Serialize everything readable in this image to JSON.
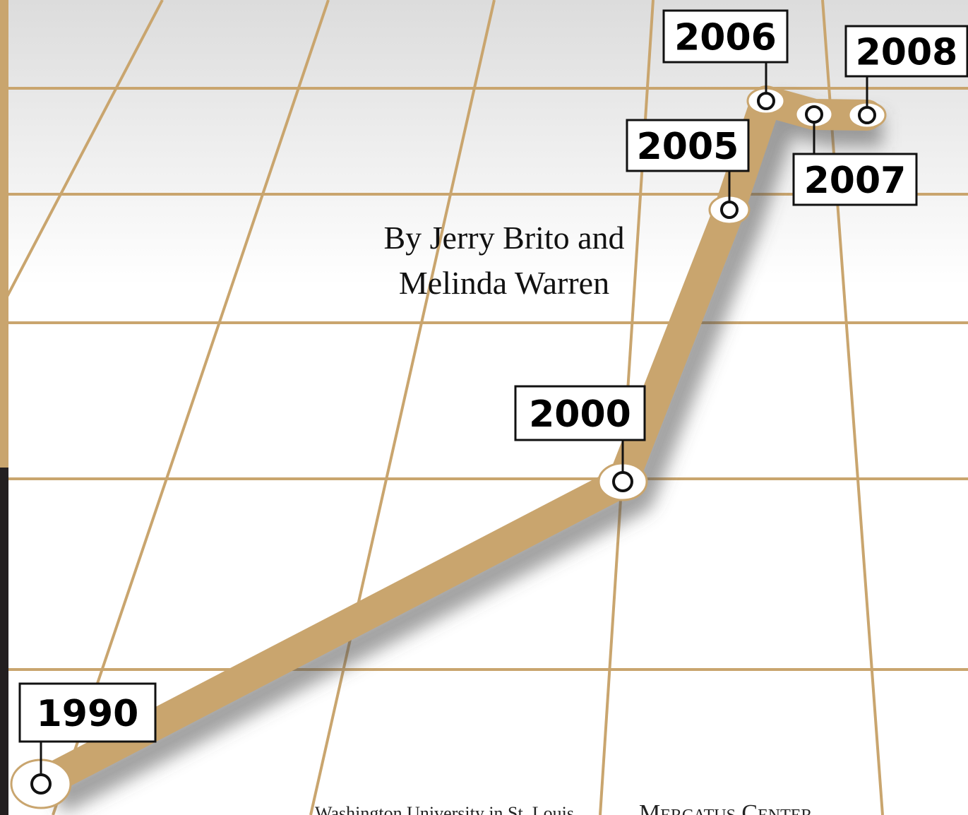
{
  "points": [
    {
      "label": "1990"
    },
    {
      "label": "2000"
    },
    {
      "label": "2005"
    },
    {
      "label": "2006"
    },
    {
      "label": "2007"
    },
    {
      "label": "2008"
    }
  ],
  "byline": [
    "By Jerry Brito and",
    "Melinda Warren"
  ],
  "footer": {
    "left": "Washington University in St. Louis",
    "right": "Mercatus Center"
  }
}
